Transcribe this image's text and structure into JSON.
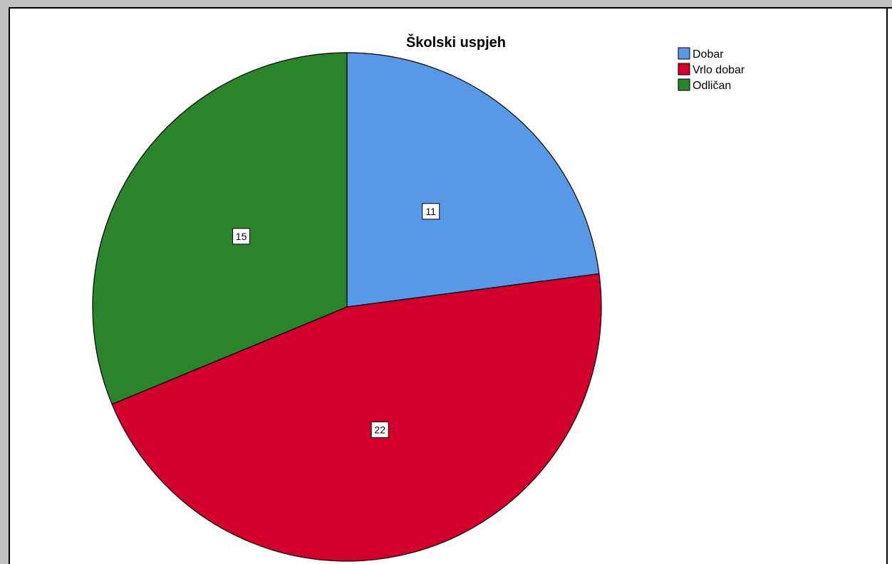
{
  "chart_data": {
    "type": "pie",
    "title": "Školski uspjeh",
    "categories": [
      "Dobar",
      "Vrlo dobar",
      "Odličan"
    ],
    "values": [
      11,
      22,
      15
    ],
    "colors": [
      "#5799e6",
      "#d3002e",
      "#2a842a"
    ],
    "data_labels": [
      "11",
      "22",
      "15"
    ],
    "legend_position": "top-right",
    "start_angle": "12 o'clock",
    "direction": "clockwise"
  }
}
